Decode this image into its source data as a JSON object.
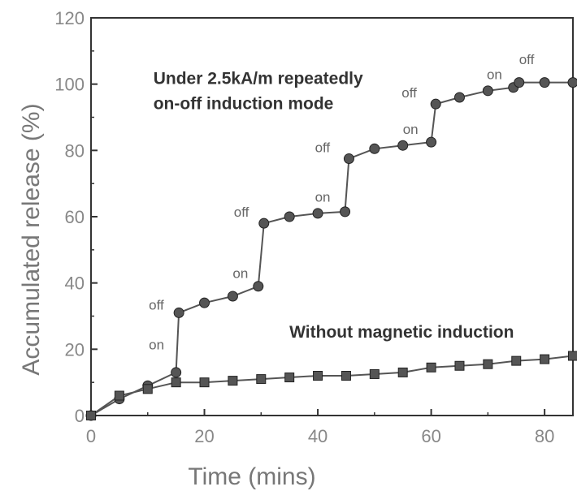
{
  "chart_data": {
    "type": "line",
    "xlabel": "Time (mins)",
    "ylabel": "Accumulated release (%)",
    "xlim": [
      0,
      85
    ],
    "ylim": [
      0,
      120
    ],
    "xticks": [
      0,
      20,
      40,
      60,
      80
    ],
    "yticks": [
      0,
      20,
      40,
      60,
      80,
      100,
      120
    ],
    "grid": false,
    "series": [
      {
        "marker": "circle",
        "color": "#555555",
        "points": [
          [
            0,
            0
          ],
          [
            5,
            5
          ],
          [
            10,
            9
          ],
          [
            15,
            13
          ],
          [
            15.5,
            31
          ],
          [
            20,
            34
          ],
          [
            25,
            36
          ],
          [
            29.5,
            39
          ],
          [
            30.5,
            58
          ],
          [
            35,
            60
          ],
          [
            40,
            61
          ],
          [
            44.8,
            61.5
          ],
          [
            45.5,
            77.5
          ],
          [
            50,
            80.5
          ],
          [
            55,
            81.5
          ],
          [
            60,
            82.5
          ],
          [
            60.8,
            94
          ],
          [
            65,
            96
          ],
          [
            70,
            98
          ],
          [
            74.5,
            99
          ],
          [
            75.5,
            100.5
          ],
          [
            80,
            100.5
          ],
          [
            85,
            100.5
          ]
        ]
      },
      {
        "marker": "square",
        "color": "#555555",
        "points": [
          [
            0,
            0
          ],
          [
            5,
            6
          ],
          [
            10,
            8
          ],
          [
            15,
            10
          ],
          [
            20,
            10
          ],
          [
            25,
            10.5
          ],
          [
            30,
            11
          ],
          [
            35,
            11.5
          ],
          [
            40,
            12
          ],
          [
            45,
            12
          ],
          [
            50,
            12.5
          ],
          [
            55,
            13
          ],
          [
            60,
            14.5
          ],
          [
            65,
            15
          ],
          [
            70,
            15.5
          ],
          [
            75,
            16.5
          ],
          [
            80,
            17
          ],
          [
            85,
            18
          ]
        ]
      }
    ],
    "annotations": [
      {
        "text": "Under 2.5kA/m repeatedly",
        "x": 11,
        "y": 100,
        "style": "bold"
      },
      {
        "text": "on-off induction mode",
        "x": 11,
        "y": 92.5,
        "style": "bold"
      },
      {
        "text": "Without magnetic induction",
        "x": 35,
        "y": 23.5,
        "style": "bold"
      },
      {
        "text": "on",
        "x": 10.2,
        "y": 20,
        "style": "small"
      },
      {
        "text": "off",
        "x": 10.2,
        "y": 32,
        "style": "small"
      },
      {
        "text": "on",
        "x": 25,
        "y": 41.5,
        "style": "small"
      },
      {
        "text": "off",
        "x": 25.2,
        "y": 60,
        "style": "small"
      },
      {
        "text": "on",
        "x": 39.5,
        "y": 64.5,
        "style": "small"
      },
      {
        "text": "off",
        "x": 39.5,
        "y": 79.5,
        "style": "small"
      },
      {
        "text": "on",
        "x": 55,
        "y": 85,
        "style": "small"
      },
      {
        "text": "off",
        "x": 54.8,
        "y": 96,
        "style": "small"
      },
      {
        "text": "on",
        "x": 69.8,
        "y": 101.5,
        "style": "small"
      },
      {
        "text": "off",
        "x": 75.5,
        "y": 106,
        "style": "small"
      }
    ]
  }
}
